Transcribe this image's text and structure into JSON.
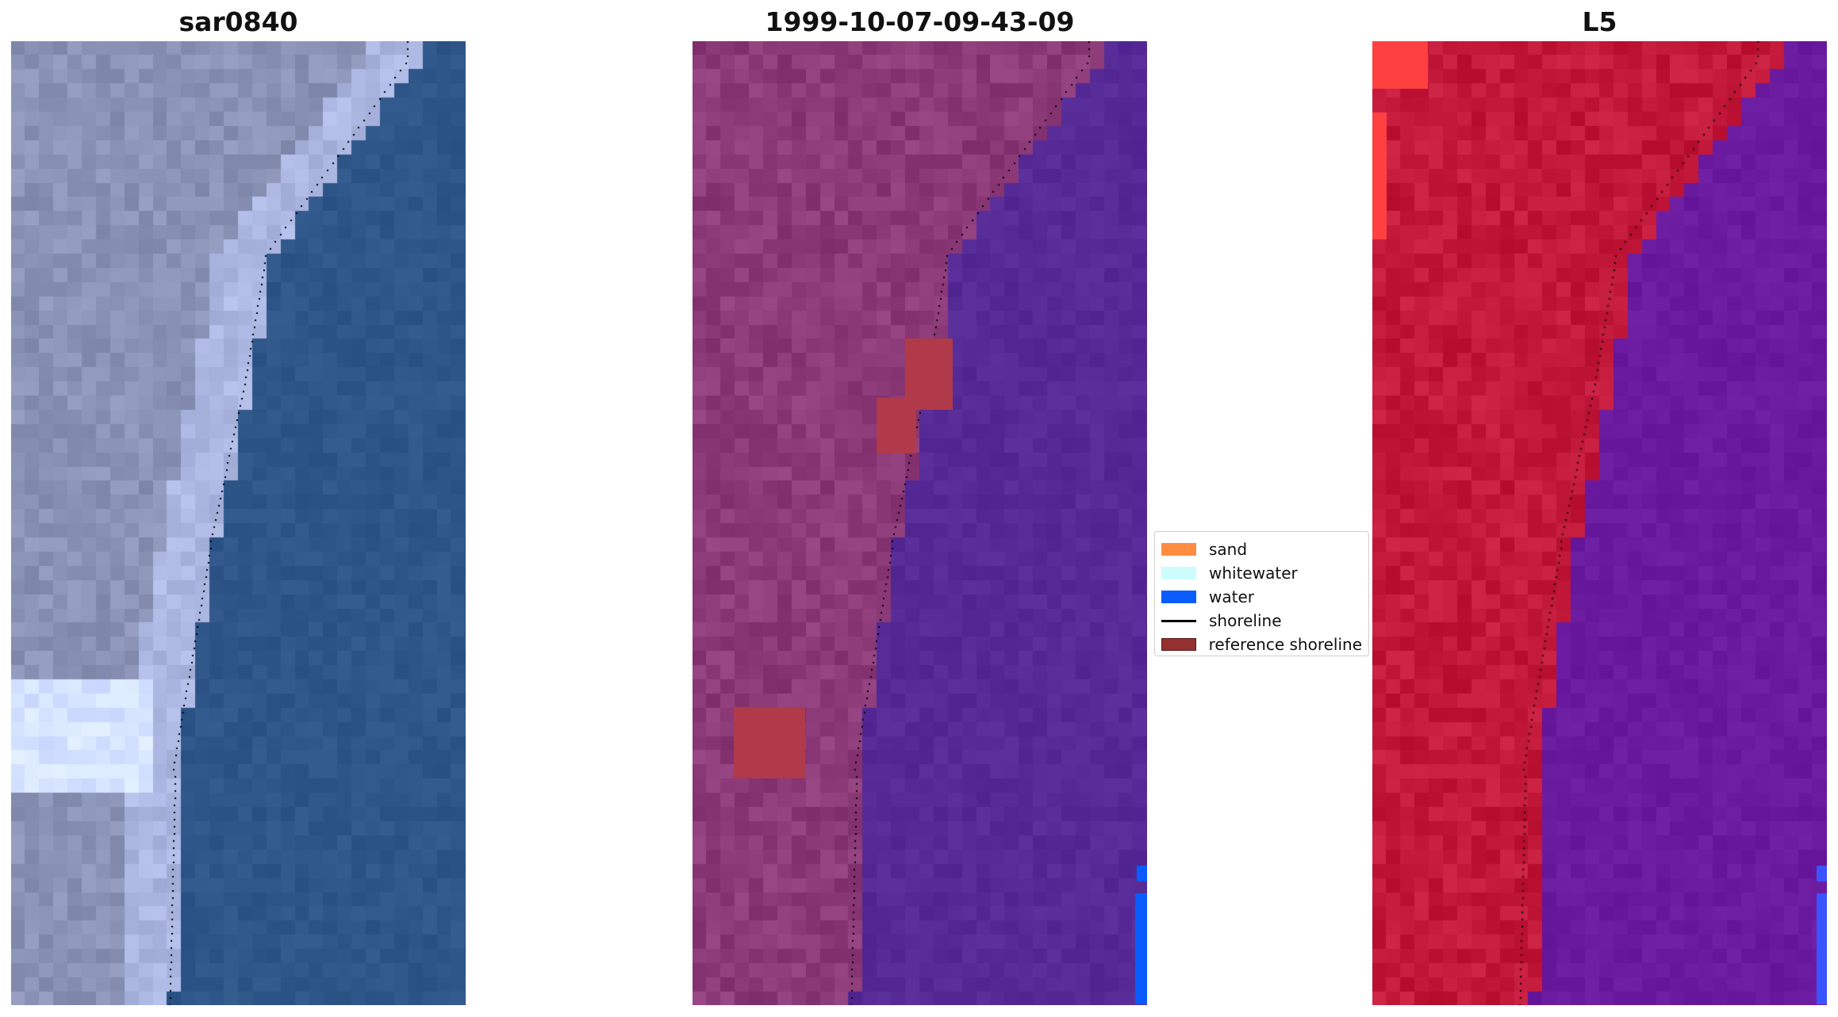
{
  "panels": [
    {
      "title": "sar0840"
    },
    {
      "title": "1999-10-07-09-43-09"
    },
    {
      "title": "L5"
    }
  ],
  "legend": {
    "items": [
      {
        "label": "sand",
        "color": "#ff8c3f",
        "kind": "patch"
      },
      {
        "label": "whitewater",
        "color": "#ccfcfc",
        "kind": "patch"
      },
      {
        "label": "water",
        "color": "#0a5cff",
        "kind": "patch"
      },
      {
        "label": "shoreline",
        "color": "#000000",
        "kind": "line"
      },
      {
        "label": "reference shoreline",
        "color": "#953030",
        "kind": "patch"
      }
    ]
  },
  "colors": {
    "land_rgb": "#8a93b5",
    "sea_rgb": "#2f5689",
    "land_class": "#8c3a78",
    "sea_class": "#552a96",
    "land_index": "#c2183a",
    "sea_index": "#6a1a9e"
  }
}
